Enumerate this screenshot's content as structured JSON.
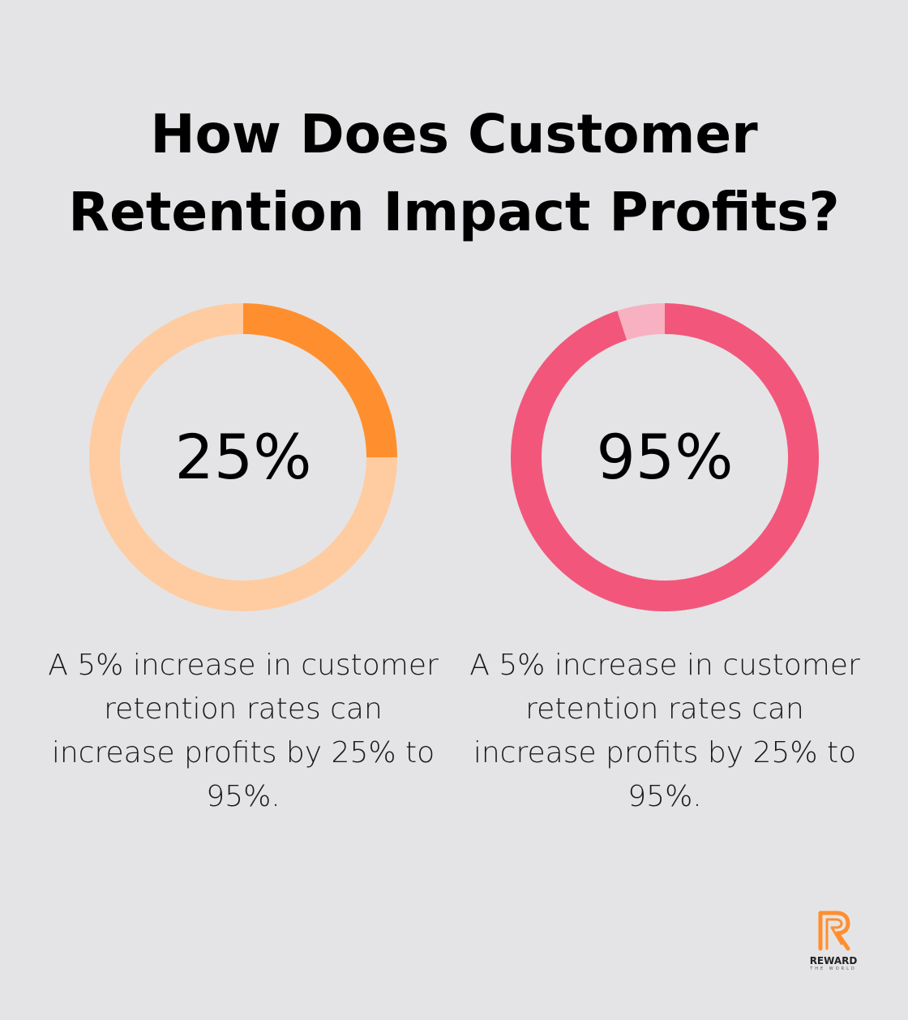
{
  "title_lines": [
    "How Does Customer",
    "Retention Impact Profits?"
  ],
  "chart_data": [
    {
      "type": "pie",
      "value_label": "25%",
      "values": [
        25,
        75
      ],
      "colors": {
        "highlight": "#ff8f2e",
        "remainder": "#ffcca1"
      },
      "caption": "A 5% increase in customer retention rates can increase profits by 25% to 95%."
    },
    {
      "type": "pie",
      "value_label": "95%",
      "values": [
        95,
        5
      ],
      "colors": {
        "highlight": "#f2577b",
        "remainder": "#f7b1c1"
      },
      "caption": "A 5% increase in customer retention rates can increase profits by 25% to 95%."
    }
  ],
  "logo": {
    "text": "REWARD",
    "subtext": "THE WORLD",
    "color": "#ff8f2e"
  }
}
